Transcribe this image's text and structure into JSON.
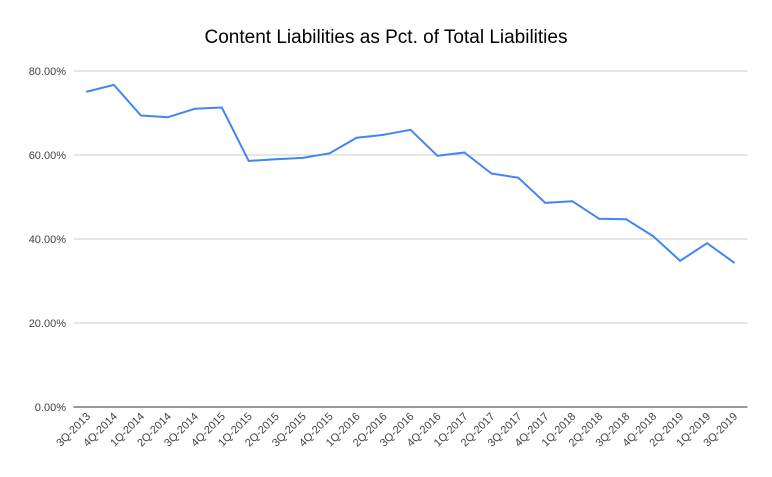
{
  "chart_data": {
    "type": "line",
    "title": "Content Liabilities as Pct. of Total Liabilities",
    "xlabel": "",
    "ylabel": "",
    "ylim": [
      0,
      80
    ],
    "grid": true,
    "legend": "none",
    "yticks": [
      "0.00%",
      "20.00%",
      "40.00%",
      "60.00%",
      "80.00%"
    ],
    "ytick_values": [
      0,
      20,
      40,
      60,
      80
    ],
    "categories": [
      "3Q-2013",
      "4Q-2014",
      "1Q-2014",
      "2Q-2014",
      "3Q-2014",
      "4Q-2015",
      "1Q-2015",
      "2Q-2015",
      "3Q-2015",
      "4Q-2015",
      "1Q-2016",
      "2Q-2016",
      "3Q-2016",
      "4Q-2016",
      "1Q-2017",
      "2Q-2017",
      "3Q-2017",
      "4Q-2017",
      "1Q-2018",
      "2Q-2018",
      "3Q-2018",
      "4Q-2018",
      "2Q-2019",
      "1Q-2019",
      "3Q-2019"
    ],
    "series": [
      {
        "name": "Content Liabilities as Pct. of Total Liabilities",
        "color": "#4285f4",
        "values": [
          75.1,
          76.7,
          69.4,
          69.0,
          71.0,
          71.3,
          58.6,
          59.0,
          59.3,
          60.4,
          64.1,
          64.8,
          66.0,
          59.8,
          60.6,
          55.6,
          54.6,
          48.6,
          49.0,
          44.8,
          44.7,
          40.7,
          34.8,
          39.0,
          34.4
        ]
      }
    ]
  }
}
